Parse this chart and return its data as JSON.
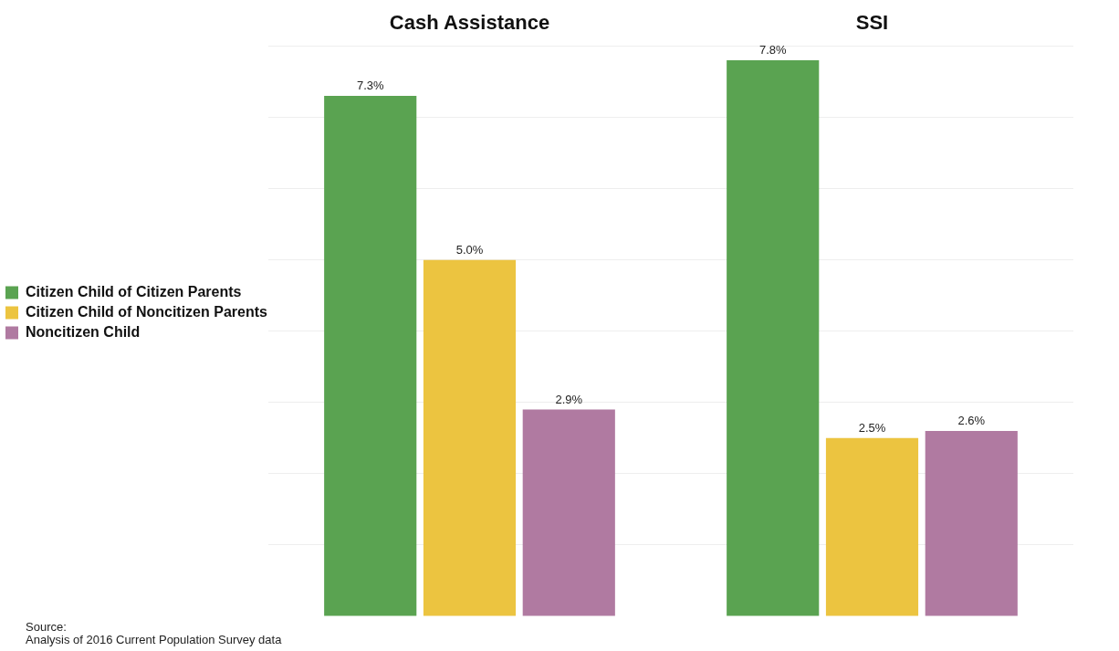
{
  "chart_data": {
    "type": "bar",
    "categories": [
      "Cash Assistance",
      "SSI"
    ],
    "series": [
      {
        "name": "Citizen Child of Citizen Parents",
        "color": "#5aa351",
        "values": [
          7.3,
          7.8
        ],
        "value_labels": [
          "7.3%",
          "7.8%"
        ]
      },
      {
        "name": "Citizen Child of Noncitizen Parents",
        "color": "#ecc440",
        "values": [
          5.0,
          2.5
        ],
        "value_labels": [
          "5.0%",
          "2.5%"
        ]
      },
      {
        "name": "Noncitizen Child",
        "color": "#b07aa1",
        "values": [
          2.9,
          2.6
        ],
        "value_labels": [
          "2.9%",
          "2.6%"
        ]
      }
    ],
    "tick_labels": "x",
    "grid": "y",
    "legend": "left",
    "annotations": [
      "Source:",
      "Analysis of 2016 Current Population Survey data"
    ]
  }
}
